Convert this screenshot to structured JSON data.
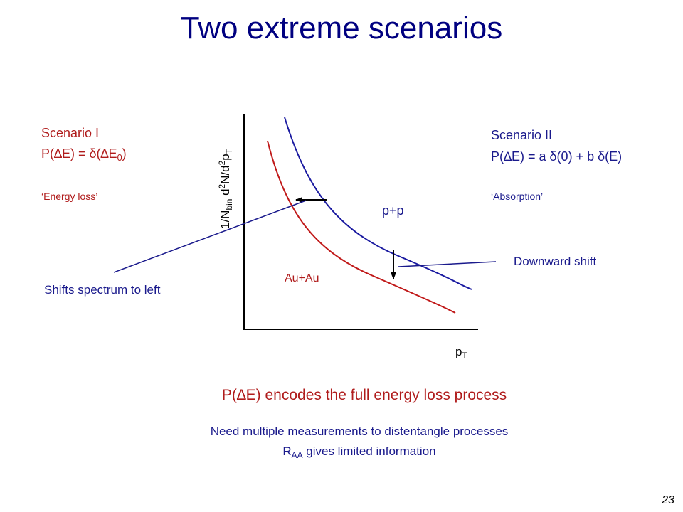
{
  "title": "Two extreme scenarios",
  "scenario_1": {
    "heading": "Scenario I",
    "formula": [
      "P(∆E) = δ(∆E",
      "0",
      ")"
    ],
    "note": "‘Energy loss’",
    "effect": "Shifts spectrum to left"
  },
  "scenario_2": {
    "heading": "Scenario II",
    "formula": [
      "P(∆E) = a δ(0) + b δ(E)"
    ],
    "note": "‘Absorption’",
    "effect": "Downward shift"
  },
  "plot": {
    "y_label": [
      "1/N",
      "bin",
      " d",
      "2",
      "N/d",
      "2",
      "p",
      "T"
    ],
    "x_label": [
      "p",
      "T"
    ],
    "curve_pp": "p+p",
    "curve_auau": "Au+Au"
  },
  "footer": {
    "main": "P(∆E) encodes the full energy loss process",
    "line1": "Need multiple measurements to distentangle processes",
    "line2": [
      "R",
      "AA",
      " gives limited information"
    ]
  },
  "page_number": "23"
}
